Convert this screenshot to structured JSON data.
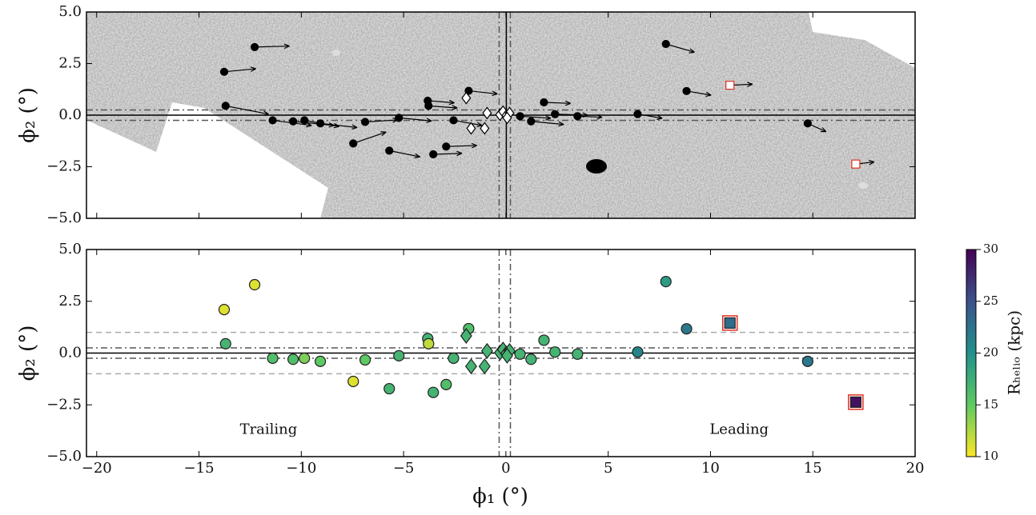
{
  "chart_data": [
    {
      "type": "scatter",
      "xlim": [
        -20.5,
        20
      ],
      "ylim": [
        -5,
        5
      ],
      "xticks": [
        -20,
        -15,
        -10,
        -5,
        0,
        5,
        10,
        15,
        20
      ],
      "yticks": [
        {
          "value": -5,
          "label": "−5.0"
        },
        {
          "value": -2.5,
          "label": "−2.5"
        },
        {
          "value": 0,
          "label": "0.0"
        },
        {
          "value": 2.5,
          "label": "2.5"
        },
        {
          "value": 5,
          "label": "5.0"
        }
      ],
      "ylabel": "ϕ₂ (°)",
      "hlines": [
        {
          "y": 0,
          "style": "solid"
        },
        {
          "y": 0.25,
          "style": "dashdot"
        },
        {
          "y": -0.25,
          "style": "dashdot"
        }
      ],
      "vlines": [
        {
          "x": 0.02,
          "style": "solid"
        },
        {
          "x": -0.33,
          "style": "dashdot"
        },
        {
          "x": 0.22,
          "style": "dashdot"
        }
      ],
      "series": [
        {
          "marker": "circle",
          "color": "#000000",
          "edgecolor": "#000000",
          "x": [
            -13.77,
            -12.28,
            -13.7,
            -11.4,
            -10.4,
            -9.85,
            -9.07,
            -7.46,
            -6.88,
            -5.7,
            -5.23,
            -3.82,
            -3.78,
            -3.55,
            -2.92,
            -2.56,
            -1.82,
            0.69,
            1.23,
            1.86,
            2.4,
            3.5,
            6.44,
            7.82,
            8.83,
            14.75
          ],
          "y": [
            2.1,
            3.3,
            0.45,
            -0.25,
            -0.3,
            -0.25,
            -0.4,
            -1.37,
            -0.33,
            -1.72,
            -0.13,
            0.7,
            0.45,
            -1.9,
            -1.52,
            -0.25,
            1.18,
            -0.05,
            -0.3,
            0.62,
            0.05,
            -0.05,
            0.05,
            3.45,
            1.17,
            -0.4
          ],
          "dx": [
            1.55,
            1.7,
            2.1,
            1.9,
            2.0,
            1.7,
            1.8,
            1.6,
            1.6,
            1.5,
            1.6,
            1.3,
            1.4,
            1.4,
            1.5,
            1.4,
            1.4,
            1.5,
            1.6,
            1.3,
            1.6,
            1.2,
            1.2,
            1.4,
            1.2,
            0.9
          ],
          "dy": [
            0.15,
            0.05,
            -0.4,
            -0.25,
            -0.2,
            -0.3,
            -0.2,
            0.55,
            0.1,
            -0.3,
            -0.15,
            -0.1,
            -0.1,
            0.05,
            0.05,
            -0.25,
            -0.15,
            -0.1,
            -0.15,
            -0.05,
            -0.05,
            -0.05,
            -0.2,
            -0.4,
            -0.2,
            -0.4
          ]
        },
        {
          "marker": "diamond",
          "color": "#ffffff",
          "edgecolor": "#000000",
          "x": [
            -1.94,
            -0.92,
            -1.7,
            -1.04,
            -0.29,
            -0.14,
            0.02,
            0.18,
            0.06
          ],
          "y": [
            0.83,
            0.1,
            -0.64,
            -0.64,
            0.02,
            0.17,
            -0.02,
            0.1,
            -0.13
          ]
        },
        {
          "marker": "square",
          "color": "#ffffff",
          "edgecolor": "#e03020",
          "x": [
            10.95,
            17.1
          ],
          "y": [
            1.45,
            -2.37
          ],
          "dx": [
            1.1,
            0.9
          ],
          "dy": [
            0.05,
            0.1
          ]
        }
      ]
    },
    {
      "type": "scatter",
      "xlim": [
        -20.5,
        20
      ],
      "ylim": [
        -5,
        5
      ],
      "xticks": [
        {
          "value": -20,
          "label": "−20"
        },
        {
          "value": -15,
          "label": "−15"
        },
        {
          "value": -10,
          "label": "−10"
        },
        {
          "value": -5,
          "label": "−5"
        },
        0,
        5,
        10,
        15,
        20
      ],
      "yticks": [
        {
          "value": -5,
          "label": "−5.0"
        },
        {
          "value": -2.5,
          "label": "−2.5"
        },
        {
          "value": 0,
          "label": "0.0"
        },
        {
          "value": 2.5,
          "label": "2.5"
        },
        {
          "value": 5,
          "label": "5.0"
        }
      ],
      "xlabel": "ϕ₁ (°)",
      "ylabel": "ϕ₂ (°)",
      "hlines": [
        {
          "y": 0,
          "style": "solid"
        },
        {
          "y": 0.25,
          "style": "dashdot"
        },
        {
          "y": -0.25,
          "style": "dashdot"
        },
        {
          "y": 1,
          "style": "dashed"
        },
        {
          "y": -1,
          "style": "dashed"
        }
      ],
      "vlines": [
        {
          "x": -0.33,
          "style": "dashdot"
        },
        {
          "x": 0.22,
          "style": "dashdot"
        }
      ],
      "annotations": [
        {
          "text": "Trailing",
          "x": -11.6,
          "y": -3.7
        },
        {
          "text": "Leading",
          "x": 11.4,
          "y": -3.7
        }
      ],
      "colorbar": {
        "label": "Rₕₑₗᵢₒ (kpc)",
        "lim": [
          10,
          30
        ],
        "ticks": [
          10,
          15,
          20,
          25,
          30
        ],
        "cmap": "viridis_r"
      },
      "series": [
        {
          "marker": "circle",
          "edgecolor": "#222222",
          "x": [
            -13.77,
            -12.28,
            -13.7,
            -11.4,
            -10.4,
            -9.85,
            -9.07,
            -7.46,
            -6.88,
            -5.7,
            -5.23,
            -3.82,
            -3.78,
            -3.55,
            -2.92,
            -2.56,
            -1.82,
            0.69,
            1.23,
            1.86,
            2.4,
            3.5,
            6.44,
            7.82,
            8.83,
            14.75
          ],
          "y": [
            2.1,
            3.3,
            0.45,
            -0.25,
            -0.3,
            -0.25,
            -0.4,
            -1.37,
            -0.33,
            -1.72,
            -0.13,
            0.7,
            0.45,
            -1.9,
            -1.52,
            -0.25,
            1.18,
            -0.05,
            -0.3,
            0.62,
            0.05,
            -0.05,
            0.05,
            3.45,
            1.17,
            -0.4
          ],
          "r_helio": [
            11,
            11,
            17,
            16,
            16,
            14,
            15,
            11,
            15,
            17,
            17,
            17,
            12,
            17,
            16,
            17,
            16,
            17,
            17,
            17,
            17,
            17,
            21,
            19,
            22,
            22
          ]
        },
        {
          "marker": "diamond",
          "edgecolor": "#222222",
          "x": [
            -1.94,
            -0.92,
            -1.7,
            -1.04,
            -0.29,
            -0.14,
            0.02,
            0.18,
            0.06
          ],
          "y": [
            0.83,
            0.1,
            -0.64,
            -0.64,
            0.02,
            0.17,
            -0.02,
            0.1,
            -0.13
          ],
          "r_helio": [
            17,
            17,
            17,
            17,
            17,
            17,
            17,
            17,
            17
          ]
        },
        {
          "marker": "square",
          "edgecolor": "#e03020",
          "x": [
            10.95,
            17.1
          ],
          "y": [
            1.45,
            -2.37
          ],
          "r_helio": [
            23,
            29
          ]
        }
      ]
    }
  ]
}
